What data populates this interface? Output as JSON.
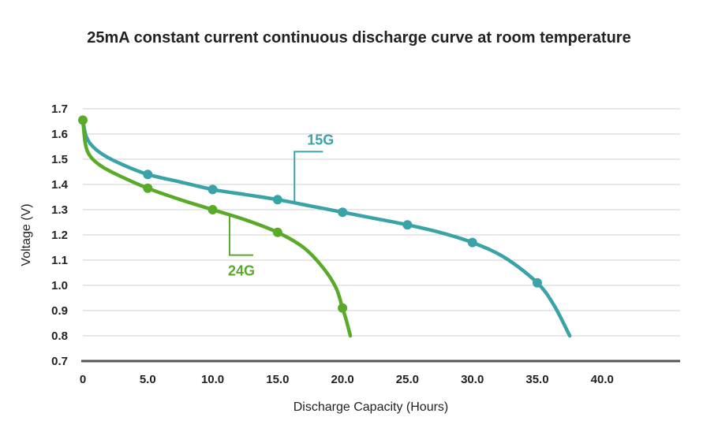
{
  "chart_data": {
    "type": "line",
    "title": "25mA constant current continuous discharge curve at room temperature",
    "xlabel": "Discharge Capacity (Hours)",
    "ylabel": "Voltage (V)",
    "xlim": [
      0,
      46
    ],
    "ylim": [
      0.7,
      1.7
    ],
    "x_ticks": [
      "0",
      "5.0",
      "10.0",
      "15.0",
      "20.0",
      "25.0",
      "30.0",
      "35.0",
      "40.0"
    ],
    "x_tick_values": [
      0,
      5,
      10,
      15,
      20,
      25,
      30,
      35,
      40
    ],
    "y_ticks": [
      "1.7",
      "1.6",
      "1.5",
      "1.4",
      "1.3",
      "1.2",
      "1.1",
      "1.0",
      "0.9",
      "0.8",
      "0.7"
    ],
    "y_tick_values": [
      1.7,
      1.6,
      1.5,
      1.4,
      1.3,
      1.2,
      1.1,
      1.0,
      0.9,
      0.8,
      0.7
    ],
    "grid": true,
    "legend": "inline labels",
    "series": [
      {
        "name": "15G",
        "color": "#3aa3a8",
        "curve": [
          [
            0,
            1.66
          ],
          [
            0.2,
            1.6
          ],
          [
            0.6,
            1.56
          ],
          [
            1.5,
            1.52
          ],
          [
            3,
            1.48
          ],
          [
            5,
            1.44
          ],
          [
            7.5,
            1.41
          ],
          [
            10,
            1.38
          ],
          [
            12.5,
            1.36
          ],
          [
            15,
            1.34
          ],
          [
            17.5,
            1.315
          ],
          [
            20,
            1.29
          ],
          [
            22.5,
            1.265
          ],
          [
            25,
            1.24
          ],
          [
            27.5,
            1.21
          ],
          [
            30,
            1.17
          ],
          [
            32.5,
            1.11
          ],
          [
            35,
            1.01
          ],
          [
            36.3,
            0.92
          ],
          [
            37.5,
            0.8
          ]
        ],
        "markers": [
          [
            5,
            1.44
          ],
          [
            10,
            1.38
          ],
          [
            15,
            1.34
          ],
          [
            20,
            1.29
          ],
          [
            25,
            1.24
          ],
          [
            30,
            1.17
          ],
          [
            35,
            1.01
          ]
        ]
      },
      {
        "name": "24G",
        "color": "#5aaa2a",
        "curve": [
          [
            0,
            1.66
          ],
          [
            0.2,
            1.56
          ],
          [
            0.6,
            1.51
          ],
          [
            1.5,
            1.47
          ],
          [
            3,
            1.43
          ],
          [
            5,
            1.385
          ],
          [
            7.5,
            1.34
          ],
          [
            10,
            1.3
          ],
          [
            12.5,
            1.26
          ],
          [
            15,
            1.21
          ],
          [
            17,
            1.15
          ],
          [
            18.5,
            1.07
          ],
          [
            19.5,
            0.99
          ],
          [
            20,
            0.91
          ],
          [
            20.3,
            0.86
          ],
          [
            20.6,
            0.8
          ]
        ],
        "markers": [
          [
            0,
            1.655
          ],
          [
            5,
            1.385
          ],
          [
            10,
            1.3
          ],
          [
            15,
            1.21
          ],
          [
            20,
            0.91
          ]
        ]
      }
    ]
  }
}
